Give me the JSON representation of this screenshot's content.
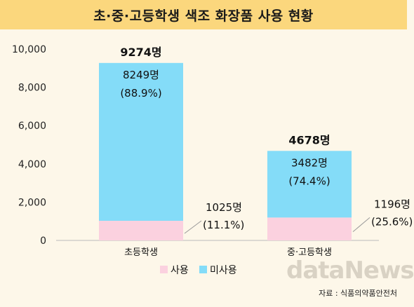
{
  "title": "초·중·고등학생 색조 화장품 사용 현황",
  "source": "자료 : 식품의약품안전처",
  "watermark": "dataNews",
  "chart_data": {
    "type": "bar",
    "stacked": true,
    "categories": [
      "초등학생",
      "중·고등학생"
    ],
    "series": [
      {
        "name": "사용",
        "values": [
          1025,
          1196
        ],
        "labels": [
          "1025명",
          "1196명"
        ],
        "pct_labels": [
          "(11.1%)",
          "(25.6%)"
        ],
        "color": "#fbd1df"
      },
      {
        "name": "미사용",
        "values": [
          8249,
          3482
        ],
        "labels": [
          "8249명",
          "3482명"
        ],
        "pct_labels": [
          "(88.9%)",
          "(74.4%)"
        ],
        "color": "#84dcf8"
      }
    ],
    "totals": [
      9274,
      4678
    ],
    "total_labels": [
      "9274명",
      "4678명"
    ],
    "ylim": [
      0,
      10000
    ],
    "yticks": [
      0,
      2000,
      4000,
      6000,
      8000,
      10000
    ],
    "ytick_labels": [
      "0",
      "2,000",
      "4,000",
      "6,000",
      "8,000",
      "10,000"
    ],
    "legend": [
      "사용",
      "미사용"
    ],
    "legend_position": "bottom",
    "grid": false
  }
}
